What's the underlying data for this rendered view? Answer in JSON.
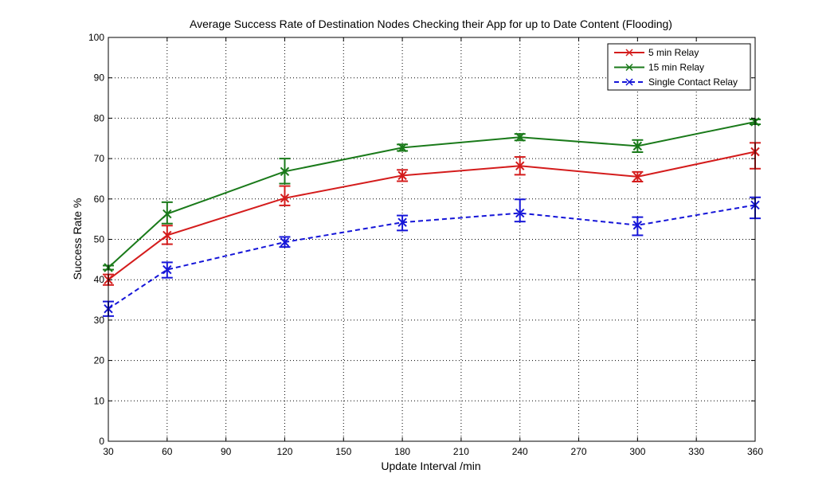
{
  "chart_data": {
    "type": "line",
    "title": "Average Success Rate of Destination Nodes Checking their App for up to Date Content (Flooding)",
    "xlabel": "Update Interval /min",
    "ylabel": "Success Rate %",
    "xlim": [
      30,
      360
    ],
    "ylim": [
      0,
      100
    ],
    "xticks": [
      "30",
      "60",
      "90",
      "120",
      "150",
      "180",
      "210",
      "240",
      "270",
      "300",
      "330",
      "360"
    ],
    "yticks": [
      "0",
      "10",
      "20",
      "30",
      "40",
      "50",
      "60",
      "70",
      "80",
      "90",
      "100"
    ],
    "grid": true,
    "legend_position": "top-right",
    "x": [
      30,
      60,
      120,
      180,
      240,
      300,
      360
    ],
    "series": [
      {
        "name": "5  min Relay",
        "color": "#d41c1c",
        "line_style": "solid",
        "marker": "x",
        "values": [
          40.0,
          51.0,
          60.2,
          65.8,
          68.2,
          65.5,
          71.7
        ],
        "error_low": [
          1.3,
          2.2,
          1.8,
          1.4,
          2.2,
          1.2,
          4.2
        ],
        "error_high": [
          1.3,
          2.4,
          3.0,
          1.4,
          2.2,
          1.2,
          2.2
        ]
      },
      {
        "name": "15 min Relay",
        "color": "#1a7a1a",
        "line_style": "solid",
        "marker": "x",
        "values": [
          43.0,
          56.3,
          66.8,
          72.7,
          75.3,
          73.1,
          79.1
        ],
        "error_low": [
          0.5,
          2.4,
          3.0,
          0.8,
          0.8,
          1.5,
          0.6
        ],
        "error_high": [
          0.5,
          2.9,
          3.2,
          0.8,
          0.8,
          1.5,
          0.6
        ]
      },
      {
        "name": "Single Contact Relay",
        "color": "#1515d8",
        "line_style": "dashed",
        "marker": "x",
        "values": [
          32.8,
          42.5,
          49.3,
          54.2,
          56.5,
          53.5,
          58.5
        ],
        "error_low": [
          1.8,
          2.0,
          1.2,
          2.0,
          2.1,
          2.5,
          3.3
        ],
        "error_high": [
          1.8,
          1.8,
          1.3,
          1.7,
          3.4,
          2.0,
          1.9
        ]
      }
    ]
  }
}
